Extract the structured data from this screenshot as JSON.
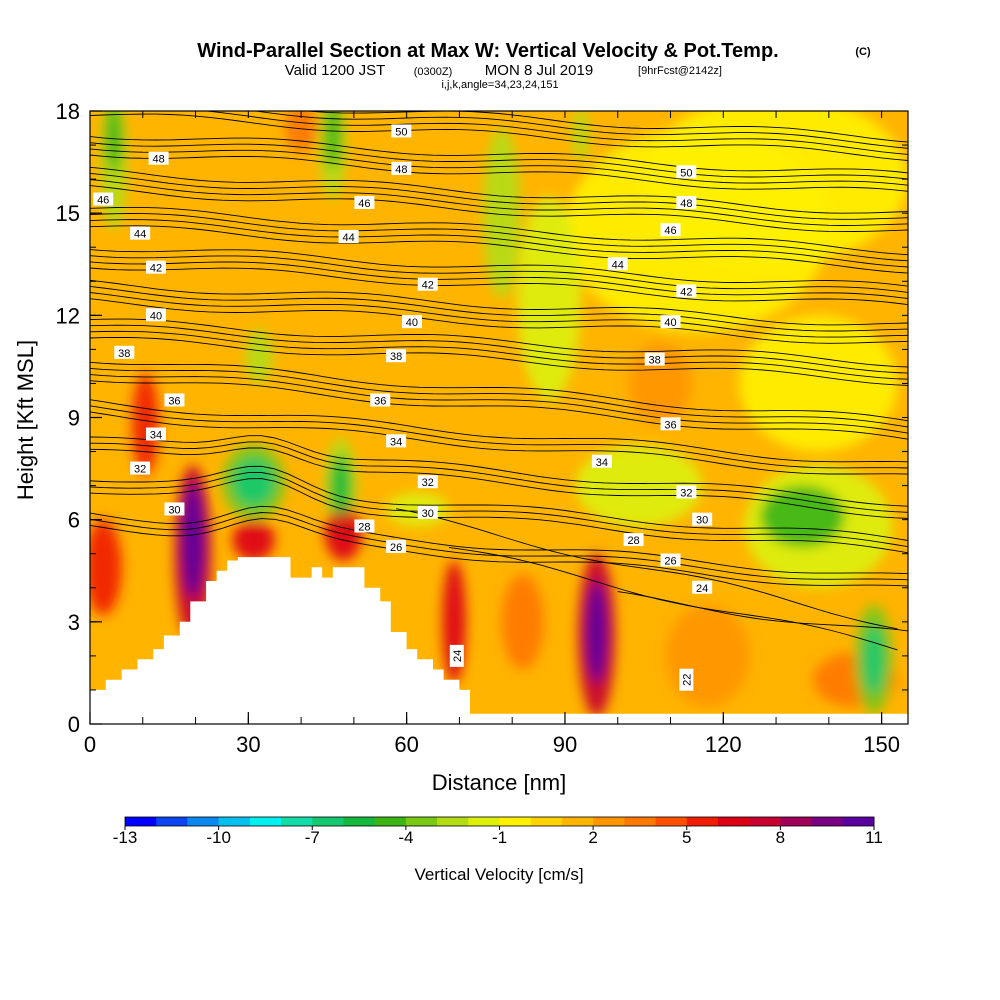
{
  "chart_data": {
    "type": "heatmap",
    "title": "Wind-Parallel Section at Max W: Vertical Velocity & Pot.Temp.",
    "title_mark": "(C)",
    "subtitle": {
      "valid": "Valid 1200 JST",
      "utc": "(0300Z)",
      "date": "MON 8 Jul 2019",
      "fcst": "[9hrFcst@2142z]",
      "indices": "i,j,k,angle=34,23,24,151"
    },
    "xlabel": "Distance [nm]",
    "ylabel": "Height [Kft MSL]",
    "xlim": [
      0,
      155
    ],
    "ylim": [
      0,
      18
    ],
    "xticks": [
      "0",
      "30",
      "60",
      "90",
      "120",
      "150"
    ],
    "xtick_values": [
      0,
      30,
      60,
      90,
      120,
      150
    ],
    "yticks": [
      "0",
      "3",
      "6",
      "9",
      "12",
      "15",
      "18"
    ],
    "ytick_values": [
      0,
      3,
      6,
      9,
      12,
      15,
      18
    ],
    "colorbar": {
      "label": "Vertical Velocity [cm/s]",
      "tick_labels": [
        "-13",
        "-10",
        "-7",
        "-4",
        "-1",
        "2",
        "5",
        "8",
        "11"
      ],
      "tick_values": [
        -13,
        -10,
        -7,
        -4,
        -1,
        2,
        5,
        8,
        11
      ],
      "colors": [
        "#0000ff",
        "#0a45f0",
        "#0a88f0",
        "#08c0f0",
        "#00f0f0",
        "#12dca8",
        "#14c870",
        "#14b83c",
        "#3cb414",
        "#78c814",
        "#b4dc14",
        "#dcf00a",
        "#fff000",
        "#ffd200",
        "#ffb400",
        "#ff9600",
        "#ff7800",
        "#ff5000",
        "#f01e00",
        "#dc0014",
        "#c80032",
        "#a0005a",
        "#780082",
        "#5a00a0"
      ]
    },
    "terrain": [
      [
        0,
        1.0
      ],
      [
        1,
        1.0
      ],
      [
        3,
        1.0
      ],
      [
        3,
        1.3
      ],
      [
        6,
        1.3
      ],
      [
        6,
        1.6
      ],
      [
        9,
        1.6
      ],
      [
        9,
        1.9
      ],
      [
        12,
        1.9
      ],
      [
        12,
        2.2
      ],
      [
        14,
        2.2
      ],
      [
        14,
        2.6
      ],
      [
        17,
        2.6
      ],
      [
        17,
        3.0
      ],
      [
        19,
        3.0
      ],
      [
        19,
        3.6
      ],
      [
        22,
        3.6
      ],
      [
        22,
        4.2
      ],
      [
        24,
        4.2
      ],
      [
        24,
        4.5
      ],
      [
        26,
        4.5
      ],
      [
        26,
        4.8
      ],
      [
        28,
        4.8
      ],
      [
        28,
        4.9
      ],
      [
        38,
        4.9
      ],
      [
        38,
        4.3
      ],
      [
        42,
        4.3
      ],
      [
        42,
        4.6
      ],
      [
        44,
        4.6
      ],
      [
        44,
        4.3
      ],
      [
        46,
        4.3
      ],
      [
        46,
        4.6
      ],
      [
        52,
        4.6
      ],
      [
        52,
        4.0
      ],
      [
        55,
        4.0
      ],
      [
        55,
        3.6
      ],
      [
        57,
        3.6
      ],
      [
        57,
        2.7
      ],
      [
        60,
        2.7
      ],
      [
        60,
        2.2
      ],
      [
        62,
        2.2
      ],
      [
        62,
        1.9
      ],
      [
        65,
        1.9
      ],
      [
        65,
        1.6
      ],
      [
        67,
        1.6
      ],
      [
        67,
        1.3
      ],
      [
        70,
        1.3
      ],
      [
        70,
        1.0
      ],
      [
        72,
        1.0
      ],
      [
        72,
        0.3
      ],
      [
        155,
        0.3
      ],
      [
        155,
        0
      ],
      [
        0,
        0
      ]
    ],
    "w_blobs": [
      {
        "x": 19.5,
        "y": 5.4,
        "rx": 2.2,
        "ry": 1.7,
        "w": 11
      },
      {
        "x": 19.5,
        "y": 5.0,
        "rx": 3.5,
        "ry": 2.6,
        "w": 7
      },
      {
        "x": 96,
        "y": 2.7,
        "rx": 2.0,
        "ry": 1.5,
        "w": 11
      },
      {
        "x": 96,
        "y": 2.6,
        "rx": 3.5,
        "ry": 2.4,
        "w": 7
      },
      {
        "x": 69,
        "y": 3.0,
        "rx": 2.2,
        "ry": 1.8,
        "w": 6
      },
      {
        "x": 48,
        "y": 5.6,
        "rx": 3.5,
        "ry": 0.8,
        "w": 6
      },
      {
        "x": 31,
        "y": 5.4,
        "rx": 4.0,
        "ry": 0.6,
        "w": 6
      },
      {
        "x": 2.5,
        "y": 4.6,
        "rx": 3.5,
        "ry": 1.4,
        "w": 5
      },
      {
        "x": 10.5,
        "y": 8.8,
        "rx": 2.5,
        "ry": 1.5,
        "w": 5
      },
      {
        "x": 40,
        "y": 17.5,
        "rx": 3.0,
        "ry": 0.7,
        "w": 3
      },
      {
        "x": 82,
        "y": 3.0,
        "rx": 4.0,
        "ry": 1.4,
        "w": 3
      },
      {
        "x": 108,
        "y": 10.0,
        "rx": 6.0,
        "ry": 1.2,
        "w": 2
      },
      {
        "x": 117,
        "y": 2.0,
        "rx": 8.0,
        "ry": 1.5,
        "w": 2
      },
      {
        "x": 145,
        "y": 1.3,
        "rx": 8.0,
        "ry": 0.8,
        "w": 3
      },
      {
        "x": 31,
        "y": 7.1,
        "rx": 4.0,
        "ry": 0.7,
        "w": -7
      },
      {
        "x": 31,
        "y": 7.1,
        "rx": 6.0,
        "ry": 1.1,
        "w": -4
      },
      {
        "x": 47.5,
        "y": 7.0,
        "rx": 2.0,
        "ry": 0.9,
        "w": -6
      },
      {
        "x": 47.5,
        "y": 7.0,
        "rx": 3.0,
        "ry": 1.4,
        "w": -3
      },
      {
        "x": 148.5,
        "y": 1.9,
        "rx": 2.0,
        "ry": 1.0,
        "w": -7
      },
      {
        "x": 148.5,
        "y": 1.9,
        "rx": 3.5,
        "ry": 1.6,
        "w": -4
      },
      {
        "x": 135,
        "y": 6.1,
        "rx": 8.0,
        "ry": 0.9,
        "w": -5
      },
      {
        "x": 138,
        "y": 5.8,
        "rx": 14.0,
        "ry": 1.8,
        "w": -2
      },
      {
        "x": 104,
        "y": 7.0,
        "rx": 12.0,
        "ry": 1.2,
        "w": -2
      },
      {
        "x": 4.5,
        "y": 17.2,
        "rx": 1.5,
        "ry": 1.0,
        "w": -5
      },
      {
        "x": 4.5,
        "y": 16.5,
        "rx": 2.5,
        "ry": 2.0,
        "w": -3
      },
      {
        "x": 46,
        "y": 17.3,
        "rx": 1.5,
        "ry": 1.0,
        "w": -5
      },
      {
        "x": 46,
        "y": 17.0,
        "rx": 2.5,
        "ry": 1.6,
        "w": -3
      },
      {
        "x": 78,
        "y": 15.0,
        "rx": 3.5,
        "ry": 2.5,
        "w": -3
      },
      {
        "x": 87,
        "y": 12.5,
        "rx": 6.0,
        "ry": 3.0,
        "w": -2
      },
      {
        "x": 93,
        "y": 17.3,
        "rx": 1.5,
        "ry": 0.8,
        "w": -3
      },
      {
        "x": 130,
        "y": 16.0,
        "rx": 25.0,
        "ry": 2.5,
        "w": -1
      },
      {
        "x": 32,
        "y": 10.8,
        "rx": 2.5,
        "ry": 0.8,
        "w": -3
      },
      {
        "x": 62,
        "y": 6.3,
        "rx": 6.0,
        "ry": 0.5,
        "w": -2
      },
      {
        "x": 115,
        "y": 14.5,
        "rx": 25.0,
        "ry": 3.0,
        "w": -1
      },
      {
        "x": 138,
        "y": 10.0,
        "rx": 15.0,
        "ry": 2.0,
        "w": -1
      }
    ],
    "w_background": 1,
    "theta_levels": [
      22,
      24,
      26,
      28,
      30,
      32,
      34,
      36,
      38,
      40,
      42,
      44,
      46,
      48,
      50
    ],
    "theta_labels": [
      {
        "text": "50",
        "x": 59,
        "y": 17.4
      },
      {
        "text": "50",
        "x": 113,
        "y": 16.2
      },
      {
        "text": "48",
        "x": 13,
        "y": 16.6
      },
      {
        "text": "48",
        "x": 59,
        "y": 16.3
      },
      {
        "text": "48",
        "x": 113,
        "y": 15.3
      },
      {
        "text": "46",
        "x": 2.5,
        "y": 15.4
      },
      {
        "text": "46",
        "x": 52,
        "y": 15.3
      },
      {
        "text": "46",
        "x": 110,
        "y": 14.5
      },
      {
        "text": "44",
        "x": 9.5,
        "y": 14.4
      },
      {
        "text": "44",
        "x": 49,
        "y": 14.3
      },
      {
        "text": "44",
        "x": 100,
        "y": 13.5
      },
      {
        "text": "42",
        "x": 12.5,
        "y": 13.4
      },
      {
        "text": "42",
        "x": 64,
        "y": 12.9
      },
      {
        "text": "42",
        "x": 113,
        "y": 12.7
      },
      {
        "text": "40",
        "x": 12.5,
        "y": 12.0
      },
      {
        "text": "40",
        "x": 61,
        "y": 11.8
      },
      {
        "text": "40",
        "x": 110,
        "y": 11.8
      },
      {
        "text": "38",
        "x": 6.5,
        "y": 10.9
      },
      {
        "text": "38",
        "x": 58,
        "y": 10.8
      },
      {
        "text": "38",
        "x": 107,
        "y": 10.7
      },
      {
        "text": "36",
        "x": 16,
        "y": 9.5
      },
      {
        "text": "36",
        "x": 55,
        "y": 9.5
      },
      {
        "text": "36",
        "x": 110,
        "y": 8.8
      },
      {
        "text": "34",
        "x": 12.5,
        "y": 8.5
      },
      {
        "text": "34",
        "x": 58,
        "y": 8.3
      },
      {
        "text": "34",
        "x": 97,
        "y": 7.7
      },
      {
        "text": "32",
        "x": 9.5,
        "y": 7.5
      },
      {
        "text": "32",
        "x": 64,
        "y": 7.1
      },
      {
        "text": "32",
        "x": 113,
        "y": 6.8
      },
      {
        "text": "30",
        "x": 16,
        "y": 6.3
      },
      {
        "text": "30",
        "x": 64,
        "y": 6.2
      },
      {
        "text": "30",
        "x": 116,
        "y": 6.0
      },
      {
        "text": "28",
        "x": 52,
        "y": 5.8
      },
      {
        "text": "28",
        "x": 103,
        "y": 5.4
      },
      {
        "text": "26",
        "x": 58,
        "y": 5.2
      },
      {
        "text": "26",
        "x": 110,
        "y": 4.8
      },
      {
        "text": "24",
        "x": 69.5,
        "y": 2.0
      },
      {
        "text": "24",
        "x": 116,
        "y": 4.0
      },
      {
        "text": "22",
        "x": 113,
        "y": 1.3
      }
    ]
  }
}
